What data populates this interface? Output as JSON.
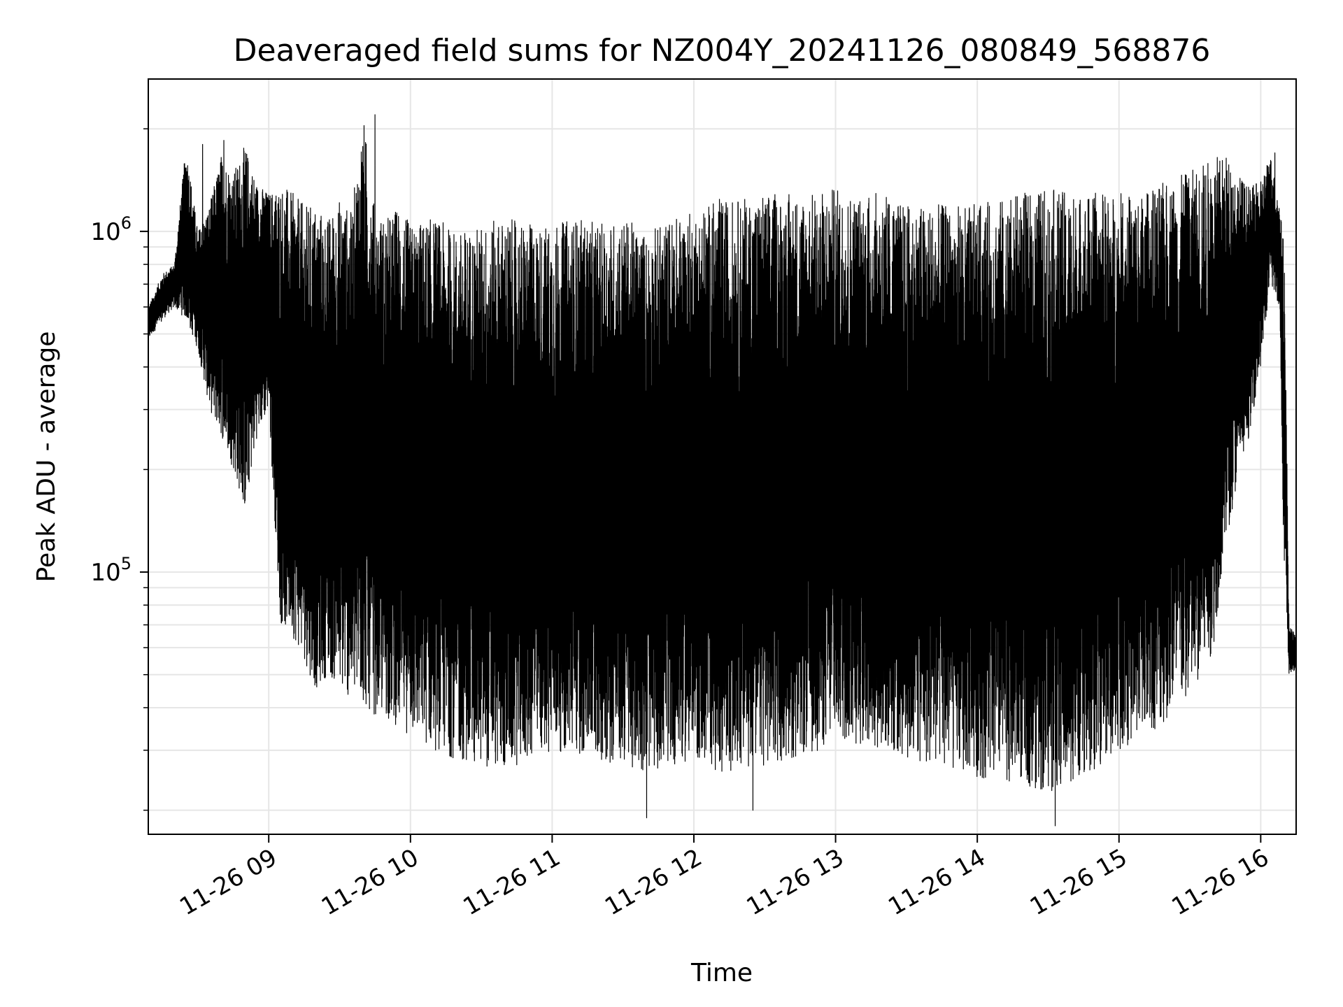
{
  "chart_data": {
    "type": "line",
    "title": "Deaveraged field sums for NZ004Y_20241126_080849_568876",
    "xlabel": "Time",
    "ylabel": "Peak ADU - average",
    "y_scale": "log",
    "ylim": [
      17000,
      2800000
    ],
    "xlim": [
      "2024-11-26 08:09",
      "2024-11-26 16:15"
    ],
    "grid": true,
    "x_ticks": [
      {
        "time": "2024-11-26 09:00",
        "label": "11-26 09"
      },
      {
        "time": "2024-11-26 10:00",
        "label": "11-26 10"
      },
      {
        "time": "2024-11-26 11:00",
        "label": "11-26 11"
      },
      {
        "time": "2024-11-26 12:00",
        "label": "11-26 12"
      },
      {
        "time": "2024-11-26 13:00",
        "label": "11-26 13"
      },
      {
        "time": "2024-11-26 14:00",
        "label": "11-26 14"
      },
      {
        "time": "2024-11-26 15:00",
        "label": "11-26 15"
      },
      {
        "time": "2024-11-26 16:00",
        "label": "11-26 16"
      }
    ],
    "y_ticks": [
      {
        "value": 100000,
        "base": "10",
        "exp": "5"
      },
      {
        "value": 1000000,
        "base": "10",
        "exp": "6"
      }
    ],
    "series": [
      {
        "color": "#000000",
        "x": [
          "08:09",
          "08:15",
          "08:20",
          "08:25",
          "08:30",
          "08:35",
          "08:40",
          "08:45",
          "08:50",
          "08:55",
          "09:00",
          "09:05",
          "09:10",
          "09:15",
          "09:20",
          "09:25",
          "09:30",
          "09:35",
          "09:40",
          "09:45",
          "09:50",
          "09:55",
          "10:00",
          "10:10",
          "10:20",
          "10:30",
          "10:40",
          "10:50",
          "11:00",
          "11:10",
          "11:20",
          "11:30",
          "11:40",
          "11:50",
          "12:00",
          "12:10",
          "12:20",
          "12:30",
          "12:40",
          "12:50",
          "13:00",
          "13:10",
          "13:20",
          "13:30",
          "13:40",
          "13:50",
          "14:00",
          "14:10",
          "14:20",
          "14:30",
          "14:40",
          "14:50",
          "15:00",
          "15:10",
          "15:20",
          "15:30",
          "15:35",
          "15:40",
          "15:45",
          "15:50",
          "15:55",
          "16:00",
          "16:04",
          "16:08",
          "16:10",
          "16:12",
          "16:15"
        ],
        "upper": [
          600000,
          750000,
          800000,
          1800000,
          1000000,
          1200000,
          1700000,
          1500000,
          1800000,
          1400000,
          1300000,
          1400000,
          1300000,
          1200000,
          1200000,
          1100000,
          1250000,
          1150000,
          2200000,
          1150000,
          1100000,
          1200000,
          1050000,
          1100000,
          1000000,
          1050000,
          1100000,
          1050000,
          1050000,
          1100000,
          1050000,
          1100000,
          1000000,
          1100000,
          1150000,
          1250000,
          1250000,
          1300000,
          1300000,
          1300000,
          1350000,
          1300000,
          1300000,
          1200000,
          1200000,
          1200000,
          1200000,
          1250000,
          1300000,
          1350000,
          1300000,
          1300000,
          1300000,
          1300000,
          1400000,
          1500000,
          1600000,
          1650000,
          1700000,
          1500000,
          1350000,
          1400000,
          1700000,
          1200000,
          900000,
          70000,
          65000
        ],
        "lower": [
          480000,
          550000,
          600000,
          550000,
          450000,
          300000,
          250000,
          200000,
          150000,
          250000,
          300000,
          70000,
          65000,
          55000,
          45000,
          50000,
          45000,
          42000,
          40000,
          38000,
          37000,
          35000,
          33000,
          30000,
          28000,
          27000,
          26000,
          28000,
          30000,
          29000,
          28000,
          27000,
          26000,
          27000,
          28000,
          26000,
          26000,
          27000,
          28000,
          29000,
          32000,
          31000,
          30000,
          28000,
          27000,
          26000,
          25000,
          24000,
          24000,
          22000,
          24000,
          26000,
          30000,
          33000,
          36000,
          42000,
          48000,
          60000,
          120000,
          180000,
          250000,
          400000,
          700000,
          600000,
          90000,
          50000,
          52000
        ],
        "spikes": [
          {
            "x": "08:32",
            "y": 1800000
          },
          {
            "x": "08:41",
            "y": 1850000
          },
          {
            "x": "09:45",
            "y": 2200000
          },
          {
            "x": "11:40",
            "y": 19000
          },
          {
            "x": "12:25",
            "y": 20000
          },
          {
            "x": "14:33",
            "y": 18000
          },
          {
            "x": "16:06",
            "y": 1700000
          }
        ]
      }
    ]
  }
}
